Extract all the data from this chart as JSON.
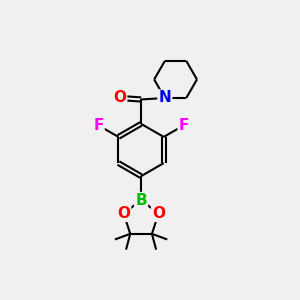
{
  "background_color": "#f0f0f0",
  "bond_color": "#000000",
  "atom_colors": {
    "O": "#ff0000",
    "N": "#0000ee",
    "F": "#ff00ff",
    "B": "#00bb00",
    "C": "#000000"
  },
  "bond_width": 1.5,
  "figsize": [
    3.0,
    3.0
  ],
  "dpi": 100
}
